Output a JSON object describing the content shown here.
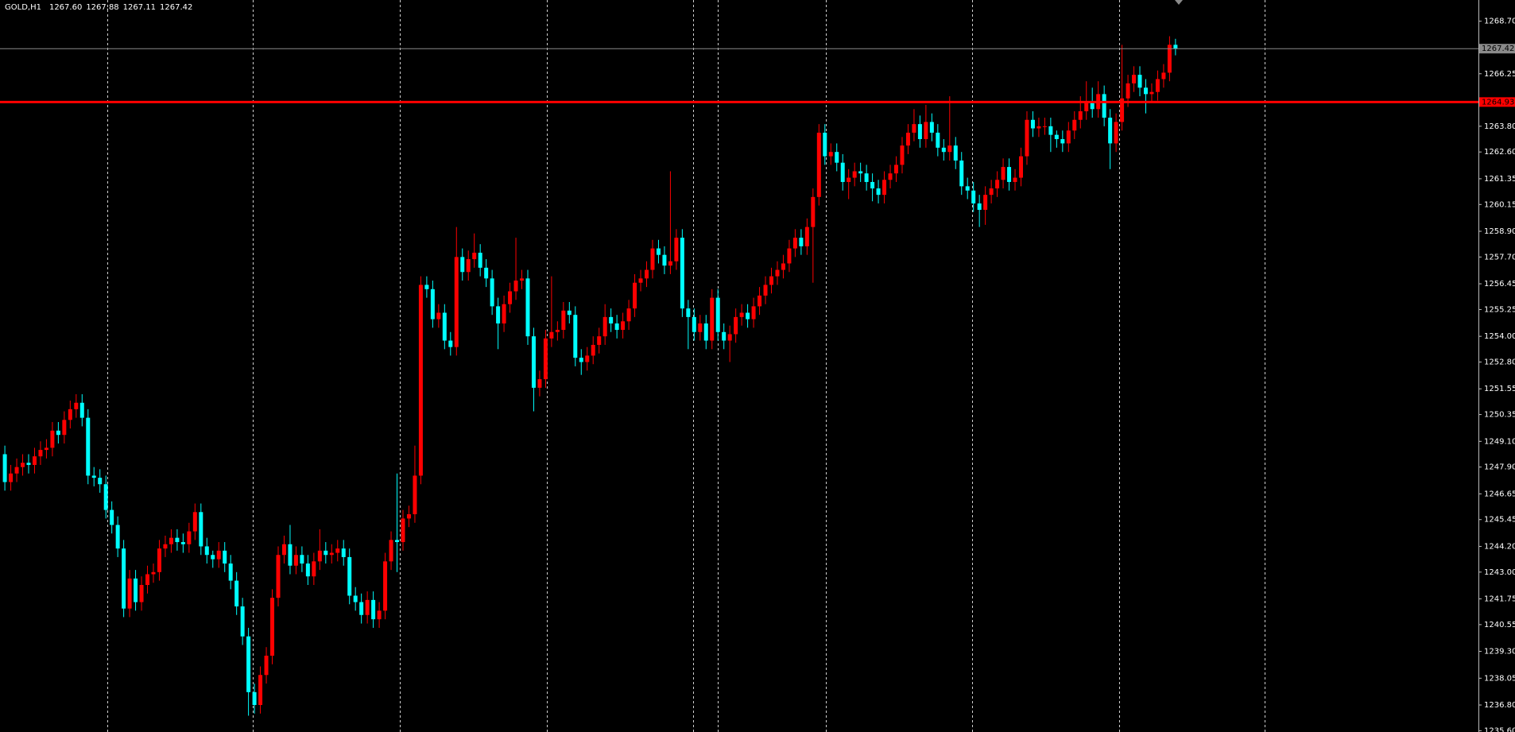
{
  "chart_data": {
    "type": "candlestick",
    "symbol": "GOLD,H1",
    "ohlc_text": [
      "1267.60",
      "1267.88",
      "1267.11",
      "1267.42"
    ],
    "up_color": "#ff0000",
    "down_color": "#00ffff",
    "ylim": [
      1235.54,
      1269.69
    ],
    "yticks": [
      {
        "value": 1268.7,
        "label": "1268.70"
      },
      1266.25,
      {
        "value": 1263.8,
        "label": "1263.80"
      },
      {
        "value": 1262.6,
        "label": "1262.60"
      },
      1261.35,
      1260.15,
      {
        "value": 1258.9,
        "label": "1258.90"
      },
      {
        "value": 1257.7,
        "label": "1257.70"
      },
      1256.45,
      1255.25,
      {
        "value": 1254,
        "label": "1254.00"
      },
      {
        "value": 1252.8,
        "label": "1252.80"
      },
      1251.55,
      1250.35,
      {
        "value": 1249.1,
        "label": "1249.10"
      },
      {
        "value": 1247.9,
        "label": "1247.90"
      },
      1246.65,
      1245.45,
      {
        "value": 1244.2,
        "label": "1244.20"
      },
      {
        "value": 1243,
        "label": "1243.00"
      },
      1241.75,
      1240.55,
      {
        "value": 1239.3,
        "label": "1239.30"
      },
      1238.05,
      {
        "value": 1236.8,
        "label": "1236.80"
      },
      {
        "value": 1235.6,
        "label": "1235.60"
      }
    ],
    "price_line": {
      "value": 1267.42,
      "label": "1267.42",
      "color": "#8a8a8a"
    },
    "level_line": {
      "value": 1264.93,
      "label": "1264.93",
      "color": "#ff0000"
    },
    "open": [
      1248.5,
      1247.2,
      1247.6,
      1247.9,
      1248.1,
      1248.0,
      1248.4,
      1248.7,
      1248.8,
      1249.6,
      1249.4,
      1250.1,
      1250.6,
      1250.9,
      1250.2,
      1247.5,
      1247.4,
      1247.1,
      1245.9,
      1245.2,
      1244.1,
      1241.3,
      1242.7,
      1241.6,
      1242.4,
      1242.9,
      1243.0,
      1244.1,
      1244.3,
      1244.6,
      1244.4,
      1244.3,
      1244.9,
      1245.8,
      1244.2,
      1243.8,
      1243.6,
      1244.0,
      1243.4,
      1242.6,
      1241.4,
      1240.0,
      1237.4,
      1236.8,
      1238.2,
      1239.1,
      1241.8,
      1243.8,
      1244.3,
      1243.3,
      1243.8,
      1243.4,
      1242.8,
      1243.5,
      1244.0,
      1243.8,
      1243.9,
      1244.1,
      1243.7,
      1241.9,
      1241.6,
      1241.0,
      1241.7,
      1240.8,
      1241.2,
      1243.5,
      1244.5,
      1244.4,
      1245.5,
      1245.7,
      1247.5,
      1256.4,
      1256.2,
      1254.8,
      1255.1,
      1253.8,
      1253.5,
      1257.7,
      1257.0,
      1257.6,
      1257.9,
      1257.2,
      1256.7,
      1255.4,
      1254.6,
      1255.5,
      1256.1,
      1256.6,
      1256.7,
      1254.0,
      1251.6,
      1252.0,
      1253.9,
      1254.2,
      1254.3,
      1255.2,
      1255.0,
      1253.0,
      1252.8,
      1253.1,
      1253.6,
      1254.0,
      1254.9,
      1254.6,
      1254.3,
      1254.7,
      1255.3,
      1256.5,
      1256.7,
      1257.1,
      1258.1,
      1257.8,
      1257.3,
      1257.5,
      1258.6,
      1255.3,
      1254.9,
      1254.2,
      1254.6,
      1253.8,
      1255.8,
      1254.2,
      1253.8,
      1254.1,
      1254.9,
      1255.1,
      1254.8,
      1255.4,
      1255.9,
      1256.4,
      1256.8,
      1257.1,
      1257.4,
      1258.1,
      1258.6,
      1258.2,
      1259.1,
      1260.5,
      1263.5,
      1262.4,
      1262.6,
      1262.1,
      1261.2,
      1261.4,
      1261.7,
      1261.6,
      1261.2,
      1260.9,
      1260.6,
      1261.3,
      1261.6,
      1262.0,
      1262.9,
      1263.5,
      1263.9,
      1263.2,
      1264.0,
      1263.5,
      1262.8,
      1262.6,
      1262.9,
      1262.2,
      1261.0,
      1260.8,
      1260.2,
      1259.9,
      1260.6,
      1260.9,
      1261.3,
      1261.9,
      1261.2,
      1261.4,
      1262.4,
      1264.1,
      1263.7,
      1263.8,
      1263.8,
      1263.4,
      1263.2,
      1263.0,
      1263.6,
      1264.1,
      1264.5,
      1264.9,
      1264.6,
      1265.3,
      1264.2,
      1263.0,
      1264.0,
      1265.1,
      1265.8,
      1266.2,
      1265.6,
      1265.3,
      1265.4,
      1266.0,
      1266.3,
      1267.6
    ],
    "high": [
      1248.9,
      1248.0,
      1248.3,
      1248.5,
      1248.5,
      1248.8,
      1249.1,
      1249.2,
      1250.0,
      1250.0,
      1250.5,
      1251.0,
      1251.3,
      1251.3,
      1250.6,
      1247.9,
      1247.8,
      1247.5,
      1246.3,
      1245.6,
      1244.5,
      1243.1,
      1243.1,
      1242.8,
      1243.3,
      1243.4,
      1244.5,
      1244.7,
      1245.0,
      1245.0,
      1244.8,
      1245.3,
      1246.2,
      1246.2,
      1244.6,
      1244.0,
      1244.4,
      1244.4,
      1243.8,
      1243.0,
      1241.8,
      1240.4,
      1237.8,
      1238.6,
      1239.5,
      1242.2,
      1244.2,
      1244.7,
      1245.2,
      1244.2,
      1244.2,
      1243.8,
      1243.9,
      1245.0,
      1244.4,
      1244.3,
      1244.5,
      1244.5,
      1244.1,
      1242.3,
      1242.0,
      1242.1,
      1242.1,
      1241.6,
      1243.9,
      1244.9,
      1247.6,
      1245.9,
      1246.1,
      1248.9,
      1256.8,
      1256.8,
      1256.6,
      1255.5,
      1255.5,
      1254.2,
      1259.1,
      1258.1,
      1258.0,
      1258.8,
      1258.3,
      1257.6,
      1257.1,
      1255.8,
      1255.9,
      1256.5,
      1258.6,
      1257.1,
      1257.1,
      1254.4,
      1252.4,
      1254.3,
      1256.8,
      1254.7,
      1255.6,
      1255.6,
      1255.4,
      1253.4,
      1253.5,
      1254.0,
      1254.4,
      1255.5,
      1255.3,
      1255.0,
      1255.1,
      1255.7,
      1256.9,
      1257.1,
      1257.5,
      1258.5,
      1258.5,
      1258.2,
      1261.7,
      1259.0,
      1259.0,
      1255.7,
      1255.3,
      1255.0,
      1255.0,
      1256.2,
      1256.2,
      1254.6,
      1254.5,
      1255.3,
      1255.5,
      1255.5,
      1255.8,
      1256.3,
      1256.8,
      1257.2,
      1257.5,
      1257.8,
      1258.5,
      1259.0,
      1259.0,
      1259.5,
      1260.9,
      1263.9,
      1263.9,
      1263.0,
      1263.0,
      1262.5,
      1261.8,
      1262.1,
      1262.1,
      1262.0,
      1261.6,
      1261.3,
      1261.7,
      1262.0,
      1262.4,
      1263.3,
      1263.9,
      1264.6,
      1264.3,
      1264.8,
      1264.4,
      1263.9,
      1263.2,
      1265.2,
      1263.3,
      1262.6,
      1261.4,
      1261.2,
      1260.6,
      1261.0,
      1261.3,
      1261.7,
      1262.3,
      1262.3,
      1261.8,
      1262.8,
      1264.5,
      1264.5,
      1264.2,
      1264.2,
      1264.2,
      1263.6,
      1263.6,
      1264.0,
      1264.5,
      1265.2,
      1265.9,
      1265.6,
      1265.9,
      1265.7,
      1264.6,
      1264.4,
      1267.6,
      1266.2,
      1266.6,
      1266.6,
      1266.0,
      1265.8,
      1266.4,
      1266.7,
      1268.0,
      1267.88
    ],
    "low": [
      1246.8,
      1246.8,
      1247.2,
      1247.5,
      1247.6,
      1247.6,
      1248.0,
      1248.3,
      1248.4,
      1249.0,
      1249.0,
      1249.7,
      1250.2,
      1249.8,
      1247.1,
      1247.0,
      1246.7,
      1245.5,
      1244.8,
      1243.7,
      1240.9,
      1240.9,
      1241.2,
      1241.2,
      1242.0,
      1242.5,
      1242.6,
      1243.7,
      1243.9,
      1244.0,
      1243.9,
      1243.9,
      1244.5,
      1243.8,
      1243.4,
      1243.2,
      1243.2,
      1243.0,
      1242.2,
      1241.0,
      1239.6,
      1236.3,
      1236.4,
      1236.4,
      1237.8,
      1238.7,
      1241.4,
      1243.4,
      1242.9,
      1242.9,
      1243.0,
      1242.4,
      1242.4,
      1243.1,
      1243.4,
      1243.4,
      1243.5,
      1243.3,
      1241.5,
      1241.2,
      1240.6,
      1240.6,
      1240.4,
      1240.4,
      1240.8,
      1243.1,
      1243.0,
      1244.0,
      1245.1,
      1245.3,
      1247.1,
      1255.8,
      1254.4,
      1254.4,
      1253.4,
      1253.1,
      1253.1,
      1256.6,
      1256.6,
      1257.2,
      1256.8,
      1256.3,
      1255.0,
      1253.4,
      1254.2,
      1255.1,
      1255.7,
      1256.2,
      1253.6,
      1250.5,
      1251.2,
      1251.6,
      1253.5,
      1253.8,
      1253.9,
      1254.6,
      1252.6,
      1252.2,
      1252.4,
      1252.7,
      1253.2,
      1253.6,
      1254.2,
      1253.9,
      1253.9,
      1254.3,
      1254.9,
      1256.1,
      1256.3,
      1256.7,
      1257.4,
      1256.9,
      1256.9,
      1257.1,
      1254.9,
      1253.4,
      1253.8,
      1253.8,
      1253.4,
      1253.4,
      1253.8,
      1253.4,
      1252.8,
      1253.7,
      1254.5,
      1254.4,
      1254.4,
      1255.0,
      1255.5,
      1256.0,
      1256.4,
      1256.7,
      1257.0,
      1257.7,
      1257.8,
      1257.8,
      1256.5,
      1260.1,
      1262.0,
      1262.0,
      1261.7,
      1260.8,
      1260.4,
      1261.0,
      1261.2,
      1260.8,
      1260.3,
      1260.2,
      1260.2,
      1260.9,
      1261.2,
      1261.6,
      1262.5,
      1263.1,
      1262.8,
      1262.8,
      1263.1,
      1262.4,
      1262.2,
      1262.2,
      1261.8,
      1260.6,
      1260.4,
      1259.8,
      1259.1,
      1259.2,
      1260.2,
      1260.5,
      1260.9,
      1260.8,
      1260.8,
      1261.0,
      1262.0,
      1263.3,
      1263.3,
      1263.4,
      1262.6,
      1262.8,
      1262.6,
      1262.6,
      1263.2,
      1263.7,
      1264.1,
      1264.2,
      1264.2,
      1263.8,
      1261.8,
      1262.6,
      1263.6,
      1264.7,
      1265.4,
      1265.2,
      1264.4,
      1264.9,
      1265.0,
      1265.6,
      1265.9,
      1267.11
    ],
    "close": [
      1247.2,
      1247.6,
      1247.9,
      1248.1,
      1248.0,
      1248.4,
      1248.7,
      1248.8,
      1249.6,
      1249.4,
      1250.1,
      1250.6,
      1250.9,
      1250.2,
      1247.5,
      1247.4,
      1247.1,
      1245.9,
      1245.2,
      1244.1,
      1241.3,
      1242.7,
      1241.6,
      1242.4,
      1242.9,
      1243.0,
      1244.1,
      1244.3,
      1244.6,
      1244.4,
      1244.3,
      1244.9,
      1245.8,
      1244.2,
      1243.8,
      1243.6,
      1244.0,
      1243.4,
      1242.6,
      1241.4,
      1240.0,
      1237.4,
      1236.8,
      1238.2,
      1239.1,
      1241.8,
      1243.8,
      1244.3,
      1243.3,
      1243.8,
      1243.4,
      1242.8,
      1243.5,
      1244.0,
      1243.8,
      1243.9,
      1244.1,
      1243.7,
      1241.9,
      1241.6,
      1241.0,
      1241.7,
      1240.8,
      1241.2,
      1243.5,
      1244.5,
      1244.4,
      1245.5,
      1245.7,
      1247.5,
      1256.4,
      1256.2,
      1254.8,
      1255.1,
      1253.8,
      1253.5,
      1257.7,
      1257.0,
      1257.6,
      1257.9,
      1257.2,
      1256.7,
      1255.4,
      1254.6,
      1255.5,
      1256.1,
      1256.6,
      1256.7,
      1254.0,
      1251.6,
      1252.0,
      1253.9,
      1254.2,
      1254.3,
      1255.2,
      1255.0,
      1253.0,
      1252.8,
      1253.1,
      1253.6,
      1254.0,
      1254.9,
      1254.6,
      1254.3,
      1254.7,
      1255.3,
      1256.5,
      1256.7,
      1257.1,
      1258.1,
      1257.8,
      1257.3,
      1257.5,
      1258.6,
      1255.3,
      1254.9,
      1254.2,
      1254.6,
      1253.8,
      1255.8,
      1254.2,
      1253.8,
      1254.1,
      1254.9,
      1255.1,
      1254.8,
      1255.4,
      1255.9,
      1256.4,
      1256.8,
      1257.1,
      1257.4,
      1258.1,
      1258.6,
      1258.2,
      1259.1,
      1260.5,
      1263.5,
      1262.4,
      1262.6,
      1262.1,
      1261.2,
      1261.4,
      1261.7,
      1261.6,
      1261.2,
      1260.9,
      1260.6,
      1261.3,
      1261.6,
      1262.0,
      1262.9,
      1263.5,
      1263.9,
      1263.2,
      1264.0,
      1263.5,
      1262.8,
      1262.6,
      1262.9,
      1262.2,
      1261.0,
      1260.8,
      1260.2,
      1259.9,
      1260.6,
      1260.9,
      1261.3,
      1261.9,
      1261.2,
      1261.4,
      1262.4,
      1264.1,
      1263.7,
      1263.8,
      1263.8,
      1263.4,
      1263.2,
      1263.0,
      1263.6,
      1264.1,
      1264.5,
      1264.9,
      1264.6,
      1265.3,
      1264.2,
      1263.0,
      1264.0,
      1265.1,
      1265.8,
      1266.2,
      1265.6,
      1265.3,
      1265.4,
      1266.0,
      1266.3,
      1267.6,
      1267.42
    ]
  }
}
